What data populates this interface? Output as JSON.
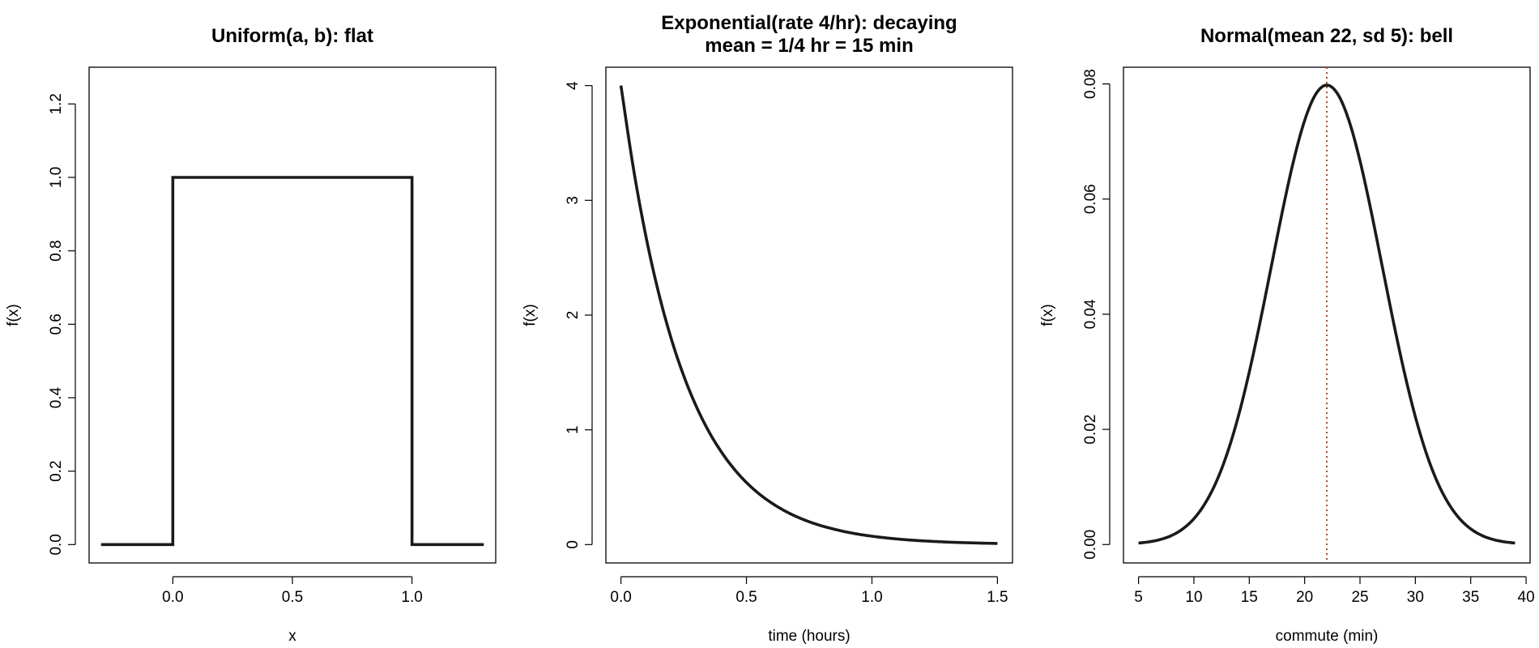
{
  "chart_data": [
    {
      "type": "line",
      "title": [
        "Uniform(a, b): flat"
      ],
      "xlabel": "x",
      "ylabel": "f(x)",
      "xlim": [
        -0.35,
        1.35
      ],
      "ylim": [
        -0.05,
        1.3
      ],
      "xticks": [
        0.0,
        0.5,
        1.0
      ],
      "xtick_labels": [
        "0.0",
        "0.5",
        "1.0"
      ],
      "yticks": [
        0.0,
        0.2,
        0.4,
        0.6,
        0.8,
        1.0,
        1.2
      ],
      "ytick_labels": [
        "0.0",
        "0.2",
        "0.4",
        "0.6",
        "0.8",
        "1.0",
        "1.2"
      ],
      "grid": false,
      "series": [
        {
          "color": "#1a1a1a",
          "x": [
            -0.3,
            0.0,
            0.0,
            1.0,
            1.0,
            1.3
          ],
          "y": [
            0,
            0,
            1,
            1,
            0,
            0
          ]
        }
      ]
    },
    {
      "type": "line",
      "title": [
        "Exponential(rate 4/hr): decaying",
        "mean = 1/4 hr = 15 min"
      ],
      "xlabel": "time (hours)",
      "ylabel": "f(x)",
      "xlim": [
        -0.06,
        1.56
      ],
      "ylim": [
        -0.16,
        4.16
      ],
      "xticks": [
        0.0,
        0.5,
        1.0,
        1.5
      ],
      "xtick_labels": [
        "0.0",
        "0.5",
        "1.0",
        "1.5"
      ],
      "yticks": [
        0,
        1,
        2,
        3,
        4
      ],
      "ytick_labels": [
        "0",
        "1",
        "2",
        "3",
        "4"
      ],
      "grid": false,
      "series": [
        {
          "color": "#1a1a1a",
          "x": [
            0,
            0.05,
            0.1,
            0.15,
            0.2,
            0.25,
            0.3,
            0.35,
            0.4,
            0.45,
            0.5,
            0.55,
            0.6,
            0.65,
            0.7,
            0.75,
            0.8,
            0.85,
            0.9,
            0.95,
            1.0,
            1.05,
            1.1,
            1.15,
            1.2,
            1.25,
            1.3,
            1.35,
            1.4,
            1.45,
            1.5
          ],
          "y": [
            4.0,
            3.275,
            2.681,
            2.195,
            1.797,
            1.472,
            1.205,
            0.986,
            0.808,
            0.661,
            0.541,
            0.443,
            0.363,
            0.297,
            0.243,
            0.199,
            0.163,
            0.134,
            0.109,
            0.089,
            0.073,
            0.06,
            0.049,
            0.04,
            0.033,
            0.027,
            0.022,
            0.018,
            0.015,
            0.012,
            0.01
          ]
        }
      ]
    },
    {
      "type": "line",
      "title": [
        "Normal(mean 22, sd 5): bell"
      ],
      "xlabel": "commute (min)",
      "ylabel": "f(x)",
      "xlim": [
        3.64,
        40.36
      ],
      "ylim": [
        -0.0032,
        0.0829
      ],
      "xticks": [
        5,
        10,
        15,
        20,
        25,
        30,
        35,
        40
      ],
      "xtick_labels": [
        "5",
        "10",
        "15",
        "20",
        "25",
        "30",
        "35",
        "40"
      ],
      "yticks": [
        0.0,
        0.02,
        0.04,
        0.06,
        0.08
      ],
      "ytick_labels": [
        "0.00",
        "0.02",
        "0.04",
        "0.06",
        "0.08"
      ],
      "grid": false,
      "reference_line": {
        "x": 22,
        "style": "dotted",
        "color": "#a0522d"
      },
      "series": [
        {
          "color": "#1a1a1a",
          "x": [
            5,
            6,
            7,
            8,
            9,
            10,
            11,
            12,
            13,
            14,
            15,
            16,
            17,
            18,
            19,
            20,
            21,
            22,
            23,
            24,
            25,
            26,
            27,
            28,
            29,
            30,
            31,
            32,
            33,
            34,
            35,
            36,
            37,
            38,
            39
          ],
          "y": [
            0.00025,
            0.00048,
            0.00089,
            0.00158,
            0.00272,
            0.00448,
            0.00711,
            0.0108,
            0.01579,
            0.02218,
            0.02995,
            0.03884,
            0.04839,
            0.05794,
            0.06664,
            0.07365,
            0.07821,
            0.07979,
            0.07821,
            0.07365,
            0.06664,
            0.05794,
            0.04839,
            0.03884,
            0.02995,
            0.02218,
            0.01579,
            0.0108,
            0.00711,
            0.00448,
            0.00272,
            0.00158,
            0.00089,
            0.00048,
            0.00025
          ]
        }
      ]
    }
  ]
}
